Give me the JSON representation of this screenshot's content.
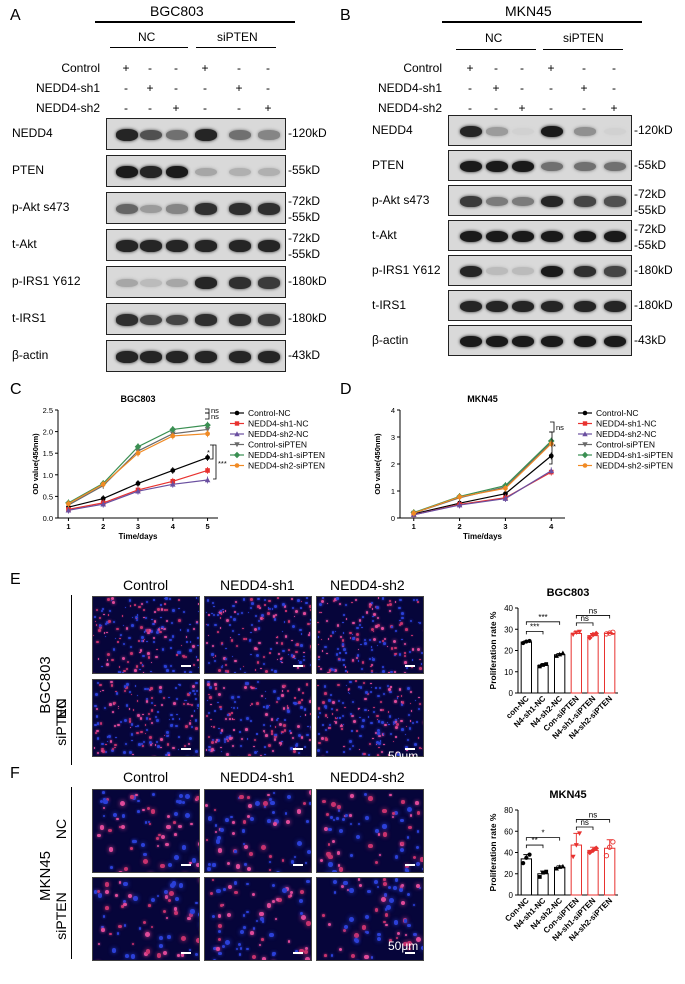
{
  "panels": {
    "A": "A",
    "B": "B",
    "C": "C",
    "D": "D",
    "E": "E",
    "F": "F"
  },
  "a": {
    "cell_line": "BGC803",
    "groups": [
      "NC",
      "siPTEN"
    ],
    "rows": [
      {
        "label": "Control",
        "marks": [
          "+",
          "-",
          "-",
          "+",
          "-",
          "-"
        ]
      },
      {
        "label": "NEDD4-sh1",
        "marks": [
          "-",
          "+",
          "-",
          "-",
          "+",
          "-"
        ]
      },
      {
        "label": "NEDD4-sh2",
        "marks": [
          "-",
          "-",
          "+",
          "-",
          "-",
          "+"
        ]
      }
    ],
    "blots": [
      {
        "label": "NEDD4",
        "mw": [
          "-120kD"
        ],
        "intensity": [
          0.9,
          0.7,
          0.55,
          0.9,
          0.55,
          0.45
        ]
      },
      {
        "label": "PTEN",
        "mw": [
          "-55kD"
        ],
        "intensity": [
          0.95,
          0.9,
          0.95,
          0.3,
          0.25,
          0.25
        ]
      },
      {
        "label": "p-Akt s473",
        "mw": [
          "-72kD",
          "-55kD"
        ],
        "intensity": [
          0.6,
          0.35,
          0.45,
          0.85,
          0.85,
          0.85
        ]
      },
      {
        "label": "t-Akt",
        "mw": [
          "-72kD",
          "-55kD"
        ],
        "intensity": [
          0.9,
          0.9,
          0.9,
          0.9,
          0.9,
          0.9
        ]
      },
      {
        "label": "p-IRS1 Y612",
        "mw": [
          "-180kD"
        ],
        "intensity": [
          0.3,
          0.2,
          0.3,
          0.9,
          0.85,
          0.8
        ]
      },
      {
        "label": "t-IRS1",
        "mw": [
          "-180kD"
        ],
        "intensity": [
          0.85,
          0.75,
          0.75,
          0.85,
          0.85,
          0.8
        ]
      },
      {
        "label": "β-actin",
        "mw": [
          "-43kD"
        ],
        "intensity": [
          0.9,
          0.9,
          0.9,
          0.9,
          0.9,
          0.9
        ]
      }
    ]
  },
  "b": {
    "cell_line": "MKN45",
    "groups": [
      "NC",
      "siPTEN"
    ],
    "rows": [
      {
        "label": "Control",
        "marks": [
          "+",
          "-",
          "-",
          "+",
          "-",
          "-"
        ]
      },
      {
        "label": "NEDD4-sh1",
        "marks": [
          "-",
          "+",
          "-",
          "-",
          "+",
          "-"
        ]
      },
      {
        "label": "NEDD4-sh2",
        "marks": [
          "-",
          "-",
          "+",
          "-",
          "-",
          "+"
        ]
      }
    ],
    "blots": [
      {
        "label": "NEDD4",
        "mw": [
          "-120kD"
        ],
        "intensity": [
          0.9,
          0.35,
          0.1,
          0.95,
          0.4,
          0.1
        ]
      },
      {
        "label": "PTEN",
        "mw": [
          "-55kD"
        ],
        "intensity": [
          0.95,
          0.95,
          0.95,
          0.55,
          0.55,
          0.55
        ]
      },
      {
        "label": "p-Akt s473",
        "mw": [
          "-72kD",
          "-55kD"
        ],
        "intensity": [
          0.8,
          0.5,
          0.5,
          0.9,
          0.75,
          0.7
        ]
      },
      {
        "label": "t-Akt",
        "mw": [
          "-72kD",
          "-55kD"
        ],
        "intensity": [
          0.95,
          0.95,
          0.95,
          0.95,
          0.95,
          0.95
        ]
      },
      {
        "label": "p-IRS1 Y612",
        "mw": [
          "-180kD"
        ],
        "intensity": [
          0.9,
          0.2,
          0.2,
          0.95,
          0.85,
          0.75
        ]
      },
      {
        "label": "t-IRS1",
        "mw": [
          "-180kD"
        ],
        "intensity": [
          0.9,
          0.9,
          0.9,
          0.9,
          0.9,
          0.9
        ]
      },
      {
        "label": "β-actin",
        "mw": [
          "-43kD"
        ],
        "intensity": [
          0.95,
          0.95,
          0.95,
          0.95,
          0.95,
          0.95
        ]
      }
    ]
  },
  "chart_data": [
    {
      "type": "line",
      "title": "BGC803",
      "xlabel": "Time/days",
      "ylabel": "OD value(450nm)",
      "x": [
        1,
        2,
        3,
        4,
        5
      ],
      "xlim": [
        0.7,
        5.3
      ],
      "ylim": [
        0,
        2.5
      ],
      "yticks": [
        0.0,
        0.5,
        1.0,
        1.5,
        2.0,
        2.5
      ],
      "series": [
        {
          "name": "Control-NC",
          "color": "#000000",
          "marker": "circle",
          "values": [
            0.25,
            0.45,
            0.8,
            1.1,
            1.4
          ]
        },
        {
          "name": "NEDD4-sh1-NC",
          "color": "#e8322f",
          "marker": "square",
          "values": [
            0.2,
            0.35,
            0.65,
            0.85,
            1.1
          ]
        },
        {
          "name": "NEDD4-sh2-NC",
          "color": "#6a4fa0",
          "marker": "triangle",
          "values": [
            0.18,
            0.32,
            0.62,
            0.78,
            0.88
          ]
        },
        {
          "name": "Control-siPTEN",
          "color": "#6a6a6a",
          "marker": "triangle-down",
          "values": [
            0.3,
            0.75,
            1.55,
            1.95,
            2.05
          ]
        },
        {
          "name": "NEDD4-sh1-siPTEN",
          "color": "#3a8f52",
          "marker": "diamond",
          "values": [
            0.35,
            0.8,
            1.65,
            2.05,
            2.15
          ]
        },
        {
          "name": "NEDD4-sh2-siPTEN",
          "color": "#f08a24",
          "marker": "circle",
          "values": [
            0.33,
            0.78,
            1.5,
            1.9,
            1.95
          ]
        }
      ],
      "annotations": [
        "ns",
        "ns",
        "*",
        "***"
      ],
      "legend": "right"
    },
    {
      "type": "line",
      "title": "MKN45",
      "xlabel": "Time/days",
      "ylabel": "OD value(450nm)",
      "x": [
        1,
        2,
        3,
        4
      ],
      "xlim": [
        0.7,
        4.3
      ],
      "ylim": [
        0,
        4
      ],
      "yticks": [
        0,
        1,
        2,
        3,
        4
      ],
      "series": [
        {
          "name": "Control-NC",
          "color": "#000000",
          "marker": "circle",
          "values": [
            0.15,
            0.55,
            0.9,
            2.3
          ]
        },
        {
          "name": "NEDD4-sh1-NC",
          "color": "#e8322f",
          "marker": "square",
          "values": [
            0.12,
            0.5,
            0.75,
            1.7
          ]
        },
        {
          "name": "NEDD4-sh2-NC",
          "color": "#6a4fa0",
          "marker": "triangle",
          "values": [
            0.12,
            0.48,
            0.72,
            1.75
          ]
        },
        {
          "name": "Control-siPTEN",
          "color": "#6a6a6a",
          "marker": "triangle-down",
          "values": [
            0.18,
            0.75,
            1.15,
            2.8
          ]
        },
        {
          "name": "NEDD4-sh1-siPTEN",
          "color": "#3a8f52",
          "marker": "diamond",
          "values": [
            0.2,
            0.8,
            1.2,
            2.85
          ]
        },
        {
          "name": "NEDD4-sh2-siPTEN",
          "color": "#f08a24",
          "marker": "circle",
          "values": [
            0.18,
            0.78,
            1.1,
            2.75
          ]
        }
      ],
      "annotations": [
        "ns",
        "*"
      ],
      "legend": "right"
    },
    {
      "type": "bar",
      "title": "BGC803",
      "ylabel": "Proliferation rate %",
      "ylim": [
        0,
        40
      ],
      "yticks": [
        0,
        10,
        20,
        30,
        40
      ],
      "categories": [
        "con-NC",
        "N4-sh1-NC",
        "N4-sh2-NC",
        "Con-siPTEN",
        "N4-sh1-siPTEN",
        "N4-sh2-siPTEN"
      ],
      "values": [
        24,
        13,
        18,
        28,
        27,
        28
      ],
      "errors": [
        0.5,
        0.6,
        0.6,
        0.8,
        1.0,
        0.5
      ],
      "points": [
        [
          23.5,
          24.2,
          24.5
        ],
        [
          12.5,
          13.2,
          13.6
        ],
        [
          17.5,
          18.2,
          18.8
        ],
        [
          27.5,
          28.5,
          28.8
        ],
        [
          26,
          27.5,
          28
        ],
        [
          27.8,
          28.2,
          28.6
        ]
      ],
      "colors": [
        "#000000",
        "#000000",
        "#000000",
        "#e8322f",
        "#e8322f",
        "#e8322f"
      ],
      "annotations": [
        "***",
        "***",
        "ns",
        "ns"
      ]
    },
    {
      "type": "bar",
      "title": "MKN45",
      "ylabel": "Proliferation rate %",
      "ylim": [
        0,
        80
      ],
      "yticks": [
        0,
        20,
        40,
        60,
        80
      ],
      "categories": [
        "Con-NC",
        "N4-sh1-NC",
        "N4-sh2-NC",
        "Con-siPTEN",
        "N4-sh1-siPTEN",
        "N4-sh2-siPTEN"
      ],
      "values": [
        34,
        20,
        26,
        47,
        42,
        44
      ],
      "errors": [
        4,
        2.5,
        1.5,
        11,
        3,
        8
      ],
      "points": [
        [
          30,
          35,
          38
        ],
        [
          17,
          21,
          22
        ],
        [
          25,
          26.5,
          27
        ],
        [
          36,
          47,
          58
        ],
        [
          40,
          42,
          44
        ],
        [
          37,
          45,
          50
        ]
      ],
      "colors": [
        "#000000",
        "#000000",
        "#000000",
        "#e8322f",
        "#e8322f",
        "#e8322f"
      ],
      "annotations": [
        "**",
        "*",
        "ns",
        "ns"
      ]
    }
  ],
  "e": {
    "cols": [
      "Control",
      "NEDD4-sh1",
      "NEDD4-sh2"
    ],
    "rows": [
      "NC",
      "siPTEN"
    ],
    "cell_line": "BGC803",
    "scale": "50μm"
  },
  "f": {
    "cols": [
      "Control",
      "NEDD4-sh1",
      "NEDD4-sh2"
    ],
    "rows": [
      "NC",
      "siPTEN"
    ],
    "cell_line": "MKN45",
    "scale": "50μm"
  }
}
